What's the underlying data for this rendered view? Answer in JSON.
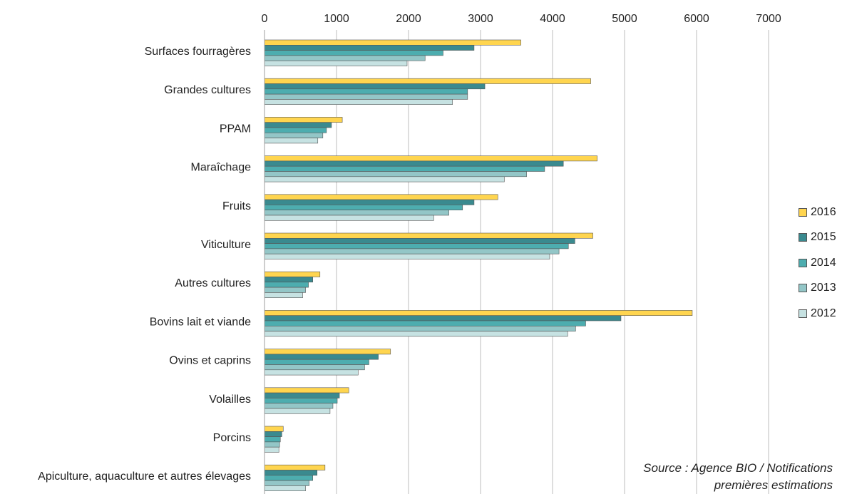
{
  "chart_data": {
    "type": "bar",
    "orientation": "horizontal",
    "categories": [
      "Surfaces fourragères",
      "Grandes cultures",
      "PPAM",
      "Maraîchage",
      "Fruits",
      "Viticulture",
      "Autres cultures",
      "Bovins lait et viande",
      "Ovins et caprins",
      "Volailles",
      "Porcins",
      "Apiculture, aquaculture et autres élevages"
    ],
    "series": [
      {
        "name": "2016",
        "color": "#FFD54F",
        "values": [
          3560,
          4530,
          1080,
          4620,
          3240,
          4560,
          770,
          5940,
          1750,
          1170,
          260,
          840
        ]
      },
      {
        "name": "2015",
        "color": "#3A8A8F",
        "values": [
          2910,
          3060,
          930,
          4150,
          2910,
          4310,
          670,
          4950,
          1580,
          1040,
          240,
          730
        ]
      },
      {
        "name": "2014",
        "color": "#4DADAF",
        "values": [
          2480,
          2820,
          860,
          3890,
          2750,
          4220,
          610,
          4460,
          1450,
          1010,
          220,
          670
        ]
      },
      {
        "name": "2013",
        "color": "#93C6C7",
        "values": [
          2230,
          2820,
          810,
          3640,
          2560,
          4090,
          570,
          4320,
          1390,
          950,
          210,
          620
        ]
      },
      {
        "name": "2012",
        "color": "#C6E2E2",
        "values": [
          1980,
          2610,
          740,
          3330,
          2350,
          3960,
          530,
          4210,
          1300,
          910,
          200,
          570
        ]
      }
    ],
    "xaxis": {
      "min": 0,
      "max": 7000,
      "ticks": [
        0,
        1000,
        2000,
        3000,
        4000,
        5000,
        6000,
        7000
      ],
      "position": "top"
    },
    "grid": true,
    "legend_position": "right",
    "legend_order": [
      "2016",
      "2015",
      "2014",
      "2013",
      "2012"
    ]
  },
  "source": {
    "line1": "Source : Agence BIO / Notifications",
    "line2": "premières estimations"
  }
}
